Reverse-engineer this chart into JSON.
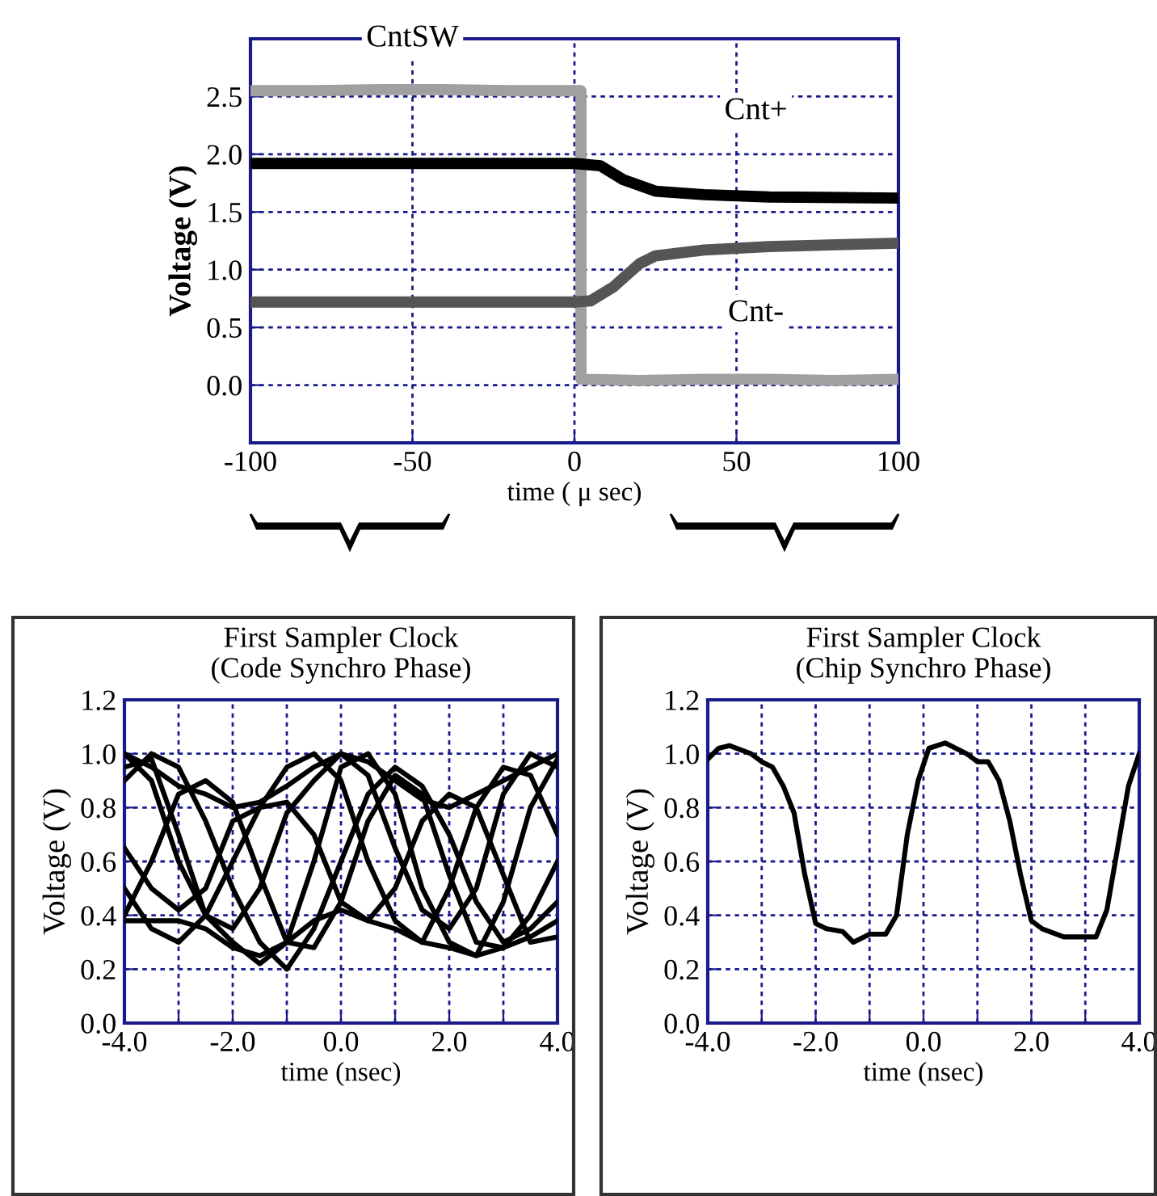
{
  "chart_data": [
    {
      "type": "line",
      "xlabel": "time ( μ sec)",
      "ylabel": "Voltage (V)",
      "xlim": [
        -100,
        100
      ],
      "ylim": [
        -0.5,
        3.0
      ],
      "xticks": [
        -100,
        -50,
        0,
        50,
        100
      ],
      "yticks": [
        {
          "value": 0,
          "label": "0.0"
        },
        {
          "value": 0.5,
          "label": "0.5"
        },
        {
          "value": 1,
          "label": "1.0"
        },
        {
          "value": 1.5,
          "label": "1.5"
        },
        {
          "value": 2,
          "label": "2.0"
        },
        {
          "value": 2.5,
          "label": "2.5"
        }
      ],
      "grid": true,
      "line_style": "solid",
      "series": [
        {
          "name": "CntSW",
          "color": "#a0a0a0",
          "x": [
            -100,
            -80,
            -60,
            -40,
            -20,
            0,
            2,
            2,
            20,
            40,
            60,
            80,
            100
          ],
          "values": [
            2.55,
            2.55,
            2.56,
            2.56,
            2.55,
            2.55,
            2.55,
            0.05,
            0.04,
            0.05,
            0.05,
            0.04,
            0.05
          ]
        },
        {
          "name": "Cnt+",
          "color": "#000000",
          "x": [
            -100,
            -50,
            0,
            8,
            15,
            25,
            40,
            60,
            100
          ],
          "values": [
            1.92,
            1.92,
            1.92,
            1.9,
            1.78,
            1.68,
            1.65,
            1.63,
            1.62
          ]
        },
        {
          "name": "Cnt-",
          "color": "#555555",
          "x": [
            -100,
            -50,
            0,
            5,
            12,
            20,
            25,
            40,
            60,
            100
          ],
          "values": [
            0.72,
            0.72,
            0.72,
            0.73,
            0.85,
            1.05,
            1.12,
            1.17,
            1.2,
            1.23
          ]
        }
      ]
    },
    {
      "type": "line",
      "title": "First Sampler Clock",
      "subtitle": "(Code Synchro Phase)",
      "xlabel": "time (nsec)",
      "ylabel": "Voltage (V)",
      "xlim": [
        -4,
        4
      ],
      "ylim": [
        0,
        1.2
      ],
      "xticks": [
        {
          "value": -4,
          "label": "-4.0"
        },
        {
          "value": -3,
          "label": null
        },
        {
          "value": -2,
          "label": "-2.0"
        },
        {
          "value": -1,
          "label": null
        },
        {
          "value": 0,
          "label": "0.0"
        },
        {
          "value": 1,
          "label": null
        },
        {
          "value": 2,
          "label": "2.0"
        },
        {
          "value": 3,
          "label": null
        },
        {
          "value": 4,
          "label": "4.0"
        }
      ],
      "yticks": [
        {
          "value": 0,
          "label": "0.0"
        },
        {
          "value": 0.2,
          "label": "0.2"
        },
        {
          "value": 0.4,
          "label": "0.4"
        },
        {
          "value": 0.6,
          "label": "0.6"
        },
        {
          "value": 0.8,
          "label": "0.8"
        },
        {
          "value": 1.0,
          "label": "1.0"
        },
        {
          "value": 1.2,
          "label": "1.2"
        }
      ],
      "grid": true,
      "line_style": "solid",
      "x": [
        -4,
        -3.5,
        -3,
        -2.5,
        -2,
        -1.5,
        -1,
        -0.5,
        0,
        0.5,
        1,
        1.5,
        2,
        2.5,
        3,
        3.5,
        4
      ],
      "series": [
        {
          "color": "#000000",
          "values": [
            1.0,
            0.95,
            0.88,
            0.85,
            0.8,
            0.82,
            0.88,
            0.95,
            1.0,
            0.97,
            0.9,
            0.83,
            0.8,
            0.85,
            0.9,
            0.95,
            1.0
          ]
        },
        {
          "color": "#000000",
          "values": [
            0.38,
            0.38,
            0.38,
            0.35,
            0.28,
            0.25,
            0.3,
            0.38,
            0.42,
            0.38,
            0.35,
            0.3,
            0.28,
            0.25,
            0.28,
            0.32,
            0.38
          ]
        },
        {
          "color": "#000000",
          "values": [
            0.95,
            0.98,
            0.7,
            0.4,
            0.3,
            0.22,
            0.3,
            0.6,
            0.95,
            1.0,
            0.85,
            0.5,
            0.3,
            0.25,
            0.45,
            0.8,
            0.98
          ]
        },
        {
          "color": "#000000",
          "values": [
            0.65,
            0.5,
            0.42,
            0.5,
            0.75,
            0.8,
            0.95,
            1.0,
            0.9,
            0.6,
            0.38,
            0.3,
            0.5,
            0.8,
            0.95,
            0.92,
            0.7
          ]
        },
        {
          "color": "#000000",
          "values": [
            0.4,
            0.6,
            0.85,
            0.9,
            0.82,
            0.55,
            0.3,
            0.28,
            0.45,
            0.75,
            0.92,
            0.85,
            0.55,
            0.3,
            0.28,
            0.4,
            0.6
          ]
        },
        {
          "color": "#000000",
          "values": [
            0.9,
            1.0,
            0.95,
            0.75,
            0.5,
            0.3,
            0.2,
            0.35,
            0.6,
            0.85,
            0.95,
            0.88,
            0.7,
            0.45,
            0.3,
            0.35,
            0.45
          ]
        },
        {
          "color": "#000000",
          "values": [
            0.5,
            0.35,
            0.3,
            0.4,
            0.6,
            0.8,
            0.82,
            0.7,
            0.45,
            0.38,
            0.5,
            0.75,
            0.85,
            0.8,
            0.55,
            0.3,
            0.32
          ]
        },
        {
          "color": "#000000",
          "values": [
            1.0,
            0.9,
            0.6,
            0.4,
            0.35,
            0.5,
            0.78,
            0.9,
            1.0,
            0.92,
            0.65,
            0.42,
            0.35,
            0.5,
            0.85,
            1.0,
            0.95
          ]
        }
      ]
    },
    {
      "type": "line",
      "title": "First Sampler Clock",
      "subtitle": "(Chip Synchro Phase)",
      "xlabel": "time (nsec)",
      "ylabel": "Voltage (V)",
      "xlim": [
        -4,
        4
      ],
      "ylim": [
        0,
        1.2
      ],
      "xticks": [
        {
          "value": -4,
          "label": "-4.0"
        },
        {
          "value": -3,
          "label": null
        },
        {
          "value": -2,
          "label": "-2.0"
        },
        {
          "value": -1,
          "label": null
        },
        {
          "value": 0,
          "label": "0.0"
        },
        {
          "value": 1,
          "label": null
        },
        {
          "value": 2,
          "label": "2.0"
        },
        {
          "value": 3,
          "label": null
        },
        {
          "value": 4,
          "label": "4.0"
        }
      ],
      "yticks": [
        {
          "value": 0,
          "label": "0.0"
        },
        {
          "value": 0.2,
          "label": "0.2"
        },
        {
          "value": 0.4,
          "label": "0.4"
        },
        {
          "value": 0.6,
          "label": "0.6"
        },
        {
          "value": 0.8,
          "label": "0.8"
        },
        {
          "value": 1.0,
          "label": "1.0"
        },
        {
          "value": 1.2,
          "label": "1.2"
        }
      ],
      "grid": true,
      "line_style": "solid",
      "x": [
        -4,
        -3.8,
        -3.6,
        -3.2,
        -3,
        -2.8,
        -2.6,
        -2.4,
        -2.2,
        -2,
        -1.8,
        -1.5,
        -1.3,
        -1,
        -0.7,
        -0.5,
        -0.3,
        -0.1,
        0.1,
        0.4,
        0.8,
        1,
        1.2,
        1.4,
        1.6,
        1.8,
        2,
        2.2,
        2.6,
        2.8,
        3.2,
        3.4,
        3.6,
        3.8,
        4
      ],
      "series": [
        {
          "color": "#000000",
          "values": [
            0.98,
            1.02,
            1.03,
            1.0,
            0.97,
            0.95,
            0.88,
            0.78,
            0.55,
            0.37,
            0.35,
            0.34,
            0.3,
            0.33,
            0.33,
            0.4,
            0.7,
            0.9,
            1.02,
            1.04,
            1.0,
            0.97,
            0.97,
            0.9,
            0.75,
            0.55,
            0.38,
            0.35,
            0.32,
            0.32,
            0.32,
            0.42,
            0.65,
            0.88,
            1.0
          ]
        }
      ]
    }
  ]
}
